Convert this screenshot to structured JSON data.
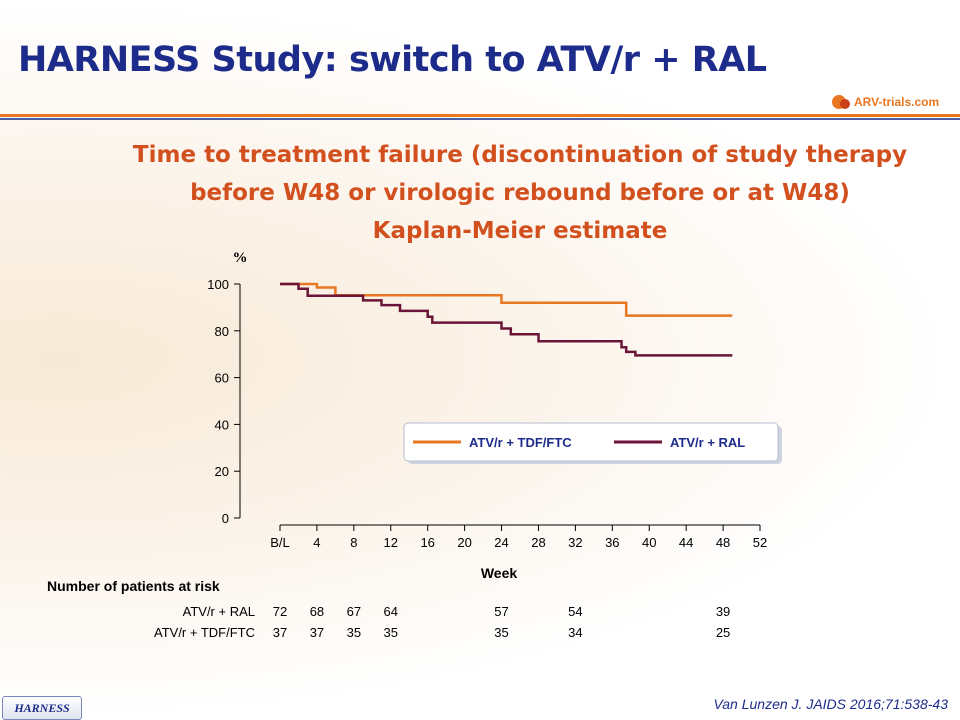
{
  "slide": {
    "title": "HARNESS Study: switch to ATV/r + RAL",
    "logo_text": "ARV-trials.com",
    "subtitle_line1": "Time to treatment failure (discontinuation of study therapy",
    "subtitle_line2": "before W48 or virologic rebound before or at W48)",
    "subtitle_line3": "Kaplan-Meier estimate",
    "badge": "HARNESS",
    "citation": "Van Lunzen J. JAIDS 2016;71:538-43"
  },
  "chart_data": {
    "type": "line",
    "ylabel": "%",
    "xlabel": "Week",
    "ylim": [
      0,
      100
    ],
    "xlim": [
      0,
      52
    ],
    "y_ticks": [
      "0",
      "20",
      "40",
      "60",
      "80",
      "100"
    ],
    "x_ticks": [
      "B/L",
      "4",
      "8",
      "12",
      "16",
      "20",
      "24",
      "28",
      "32",
      "36",
      "40",
      "44",
      "48",
      "52"
    ],
    "legend_position": "right",
    "series": [
      {
        "name": "ATV/r + TDF/FTC",
        "color": "#e87722",
        "x": [
          0,
          4,
          4,
          6,
          6,
          24,
          24,
          37.5,
          37.5,
          49
        ],
        "y": [
          100,
          100,
          98.5,
          98.5,
          95.2,
          95.2,
          92,
          92,
          86.5,
          86.5
        ]
      },
      {
        "name": "ATV/r + RAL",
        "color": "#6a1538",
        "x": [
          0,
          2,
          2,
          3,
          3,
          9,
          9,
          11,
          11,
          13,
          13,
          16,
          16,
          16.5,
          16.5,
          24,
          24,
          25,
          25,
          28,
          28,
          37,
          37,
          37.5,
          37.5,
          38.5,
          38.5,
          49
        ],
        "y": [
          100,
          100,
          98,
          98,
          95,
          95,
          93,
          93,
          91,
          91,
          88.5,
          88.5,
          86,
          86,
          83.5,
          83.5,
          81,
          81,
          78.5,
          78.5,
          75.5,
          75.5,
          73,
          73,
          71,
          71,
          69.5,
          69.5
        ]
      }
    ],
    "risk_table": {
      "title": "Number of patients at risk",
      "weeks": [
        0,
        4,
        8,
        12,
        24,
        32,
        48
      ],
      "rows": [
        {
          "label": "ATV/r + RAL",
          "values": [
            "72",
            "68",
            "67",
            "64",
            "57",
            "54",
            "39"
          ]
        },
        {
          "label": "ATV/r + TDF/FTC",
          "values": [
            "37",
            "37",
            "35",
            "35",
            "35",
            "34",
            "25"
          ]
        }
      ]
    }
  }
}
